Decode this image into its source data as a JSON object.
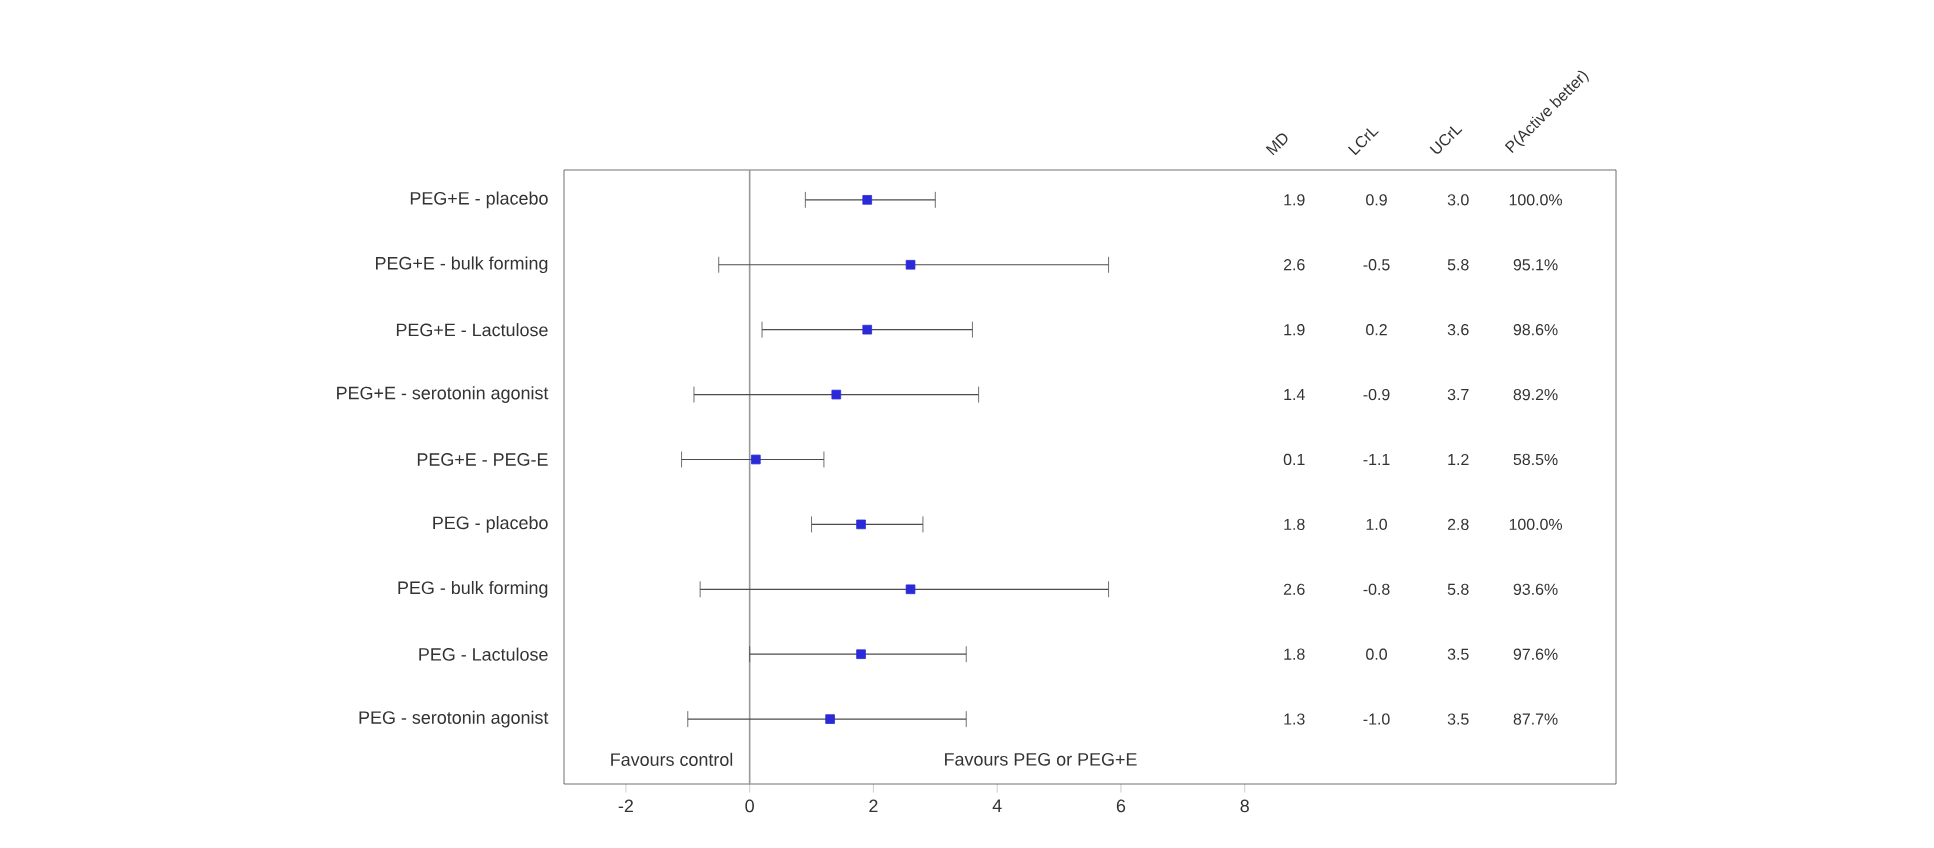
{
  "chart_data": {
    "type": "scatter",
    "orientation": "horizontal",
    "categories": [
      "PEG+E - placebo",
      "PEG+E - bulk forming",
      "PEG+E - Lactulose",
      "PEG+E - serotonin agonist",
      "PEG+E - PEG-E",
      "PEG - placebo",
      "PEG - bulk forming",
      "PEG - Lactulose",
      "PEG - serotonin agonist"
    ],
    "values": [
      1.9,
      2.6,
      1.9,
      1.4,
      0.1,
      1.8,
      2.6,
      1.8,
      1.3
    ],
    "errors": [
      [
        0.9,
        3.0
      ],
      [
        -0.5,
        5.8
      ],
      [
        0.2,
        3.6
      ],
      [
        -0.9,
        3.7
      ],
      [
        -1.1,
        1.2
      ],
      [
        1.0,
        2.8
      ],
      [
        -0.8,
        5.8
      ],
      [
        0.0,
        3.5
      ],
      [
        -1.0,
        3.5
      ]
    ],
    "color": "#2a2ad8",
    "marker": "square",
    "xlim": [
      -3,
      14
    ],
    "xticks": [
      -2,
      0,
      2,
      4,
      6,
      8
    ],
    "ref_lines": [
      {
        "axis": "x",
        "value": 0,
        "color": "#999999"
      }
    ],
    "annotations": [
      "Favours control",
      "Favours PEG or PEG+E",
      "MD",
      "LCrL",
      "UCrL",
      "P(Active better)",
      "1.9",
      "0.9",
      "3.0",
      "100.0%",
      "2.6",
      "-0.5",
      "5.8",
      "95.1%",
      "1.9",
      "0.2",
      "3.6",
      "98.6%",
      "1.4",
      "-0.9",
      "3.7",
      "89.2%",
      "0.1",
      "-1.1",
      "1.2",
      "58.5%",
      "1.8",
      "1.0",
      "2.8",
      "100.0%",
      "2.6",
      "-0.8",
      "5.8",
      "93.6%",
      "1.8",
      "0.0",
      "3.5",
      "97.6%",
      "1.3",
      "-1.0",
      "3.5",
      "87.7%"
    ]
  }
}
